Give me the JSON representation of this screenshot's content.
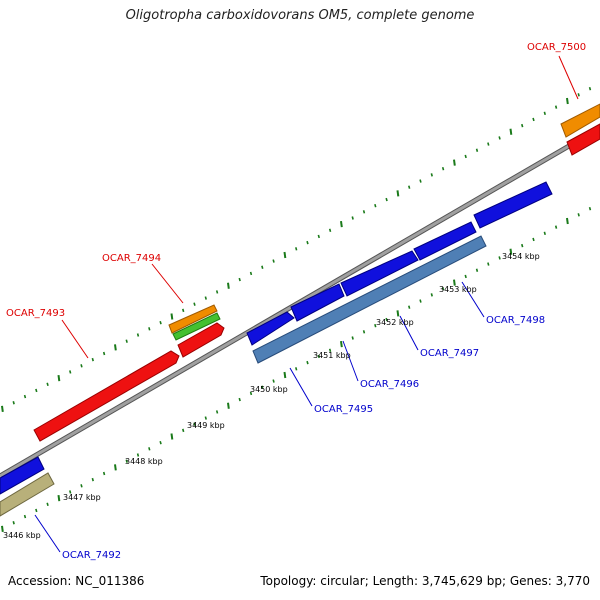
{
  "title": "Oligotropha carboxidovorans OM5, complete genome",
  "footer": {
    "accession_label": "Accession:",
    "accession": "NC_011386",
    "topology_label": "Topology:",
    "topology": "circular",
    "length_label": "Length:",
    "length": "3,745,629 bp",
    "genes_label": "Genes:",
    "genes": "3,770"
  },
  "colors": {
    "backbone": "#808080",
    "tick": "#1a7a1a",
    "gene_red": "#ee1111",
    "gene_blue": "#1010dd",
    "gene_steel": "#4f7fb5",
    "gene_orange": "#f08c00",
    "gene_green": "#44c030",
    "gene_khaki": "#b8b07a",
    "label_forward": "#dd0000",
    "label_reverse": "#0000cc"
  },
  "scale_labels": [
    "3446 kbp",
    "3447 kbp",
    "3448 kbp",
    "3449 kbp",
    "3450 kbp",
    "3451 kbp",
    "3452 kbp",
    "3453 kbp",
    "3454 kbp"
  ],
  "gene_labels": {
    "forward": [
      "OCAR_7493",
      "OCAR_7494",
      "OCAR_7500"
    ],
    "reverse": [
      "OCAR_7492",
      "OCAR_7495",
      "OCAR_7496",
      "OCAR_7497",
      "OCAR_7498"
    ]
  }
}
